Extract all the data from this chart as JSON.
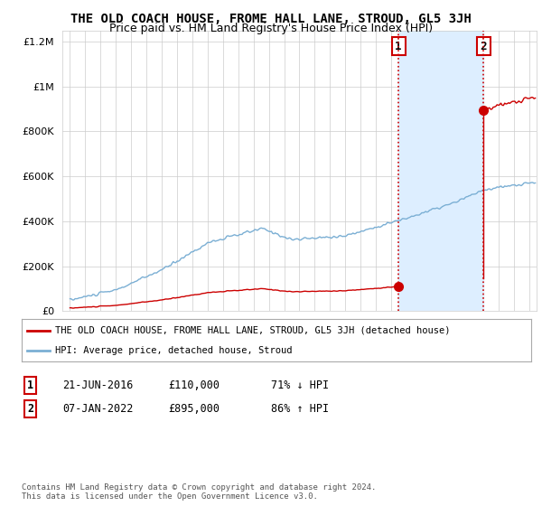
{
  "title": "THE OLD COACH HOUSE, FROME HALL LANE, STROUD, GL5 3JH",
  "subtitle": "Price paid vs. HM Land Registry's House Price Index (HPI)",
  "legend_line1": "THE OLD COACH HOUSE, FROME HALL LANE, STROUD, GL5 3JH (detached house)",
  "legend_line2": "HPI: Average price, detached house, Stroud",
  "footnote": "Contains HM Land Registry data © Crown copyright and database right 2024.\nThis data is licensed under the Open Government Licence v3.0.",
  "transaction1_label": "1",
  "transaction1_date": "21-JUN-2016",
  "transaction1_price": "£110,000",
  "transaction1_hpi": "71% ↓ HPI",
  "transaction2_label": "2",
  "transaction2_date": "07-JAN-2022",
  "transaction2_price": "£895,000",
  "transaction2_hpi": "86% ↑ HPI",
  "transaction1_year": 2016.47,
  "transaction1_value": 110000,
  "transaction2_year": 2022.02,
  "transaction2_value": 895000,
  "ylim": [
    0,
    1250000
  ],
  "xlim_start": 1994.5,
  "xlim_end": 2025.5,
  "red_color": "#cc0000",
  "blue_color": "#7bafd4",
  "shade_color": "#ddeeff",
  "bg_color": "#ffffff",
  "grid_color": "#cccccc",
  "title_fontsize": 10,
  "subtitle_fontsize": 9
}
